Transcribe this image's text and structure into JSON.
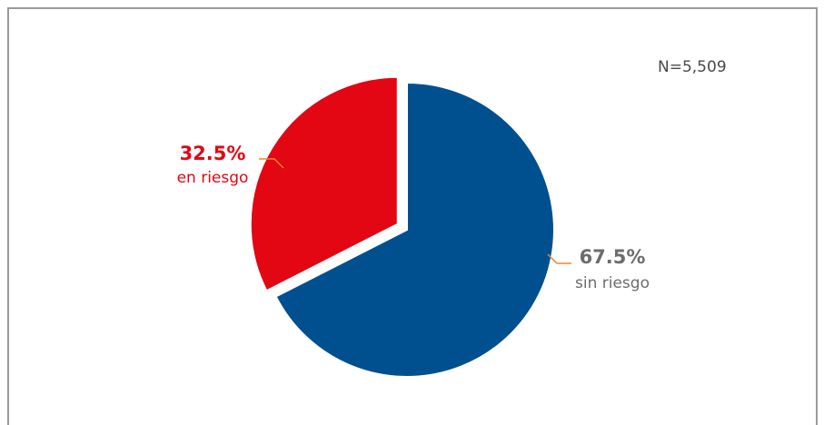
{
  "chart_data": {
    "type": "pie",
    "slices": [
      {
        "label": "sin riesgo",
        "value": 67.5,
        "value_label": "67.5%",
        "color": "#00508f",
        "label_color": "#6d6d6d"
      },
      {
        "label": "en riesgo",
        "value": 32.5,
        "value_label": "32.5%",
        "color": "#e30613",
        "label_color": "#e30613",
        "exploded": true
      }
    ],
    "annotation": "N=5,509",
    "leader_color": "#f0852d"
  }
}
